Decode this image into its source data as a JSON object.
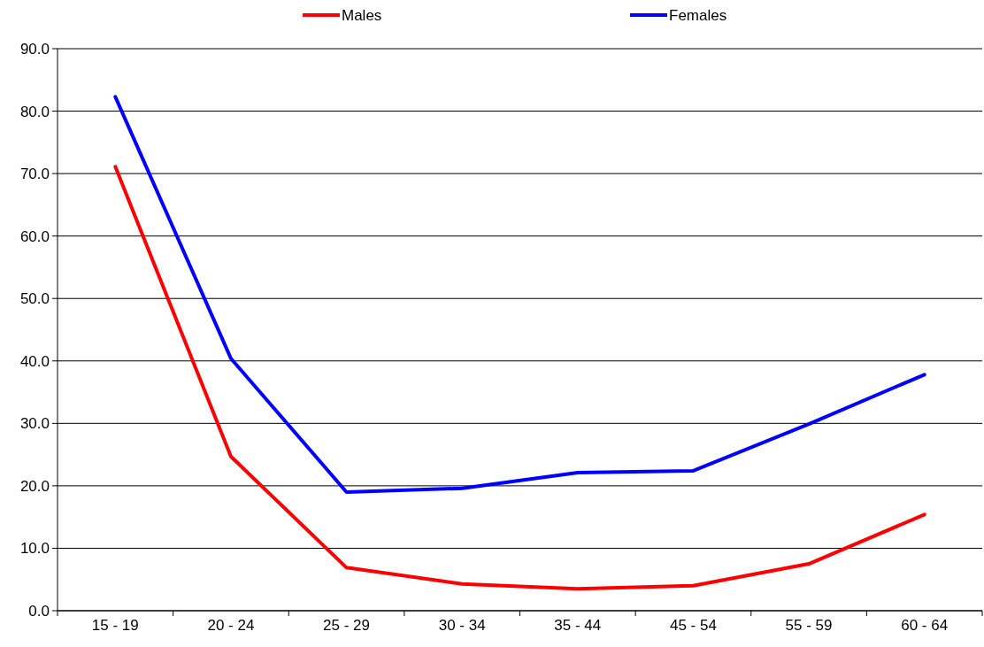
{
  "chart_data": {
    "type": "line",
    "categories": [
      "15 - 19",
      "20 - 24",
      "25 - 29",
      "30 - 34",
      "35 - 44",
      "45 - 54",
      "55 - 59",
      "60 - 64"
    ],
    "series": [
      {
        "name": "Males",
        "color": "#ff0000",
        "values": [
          71.1,
          24.7,
          6.9,
          4.3,
          3.5,
          4.0,
          7.5,
          15.4
        ]
      },
      {
        "name": "Females",
        "color": "#0000ff",
        "values": [
          82.3,
          40.4,
          19.0,
          19.6,
          22.1,
          22.4,
          29.9,
          37.8
        ]
      }
    ],
    "ylim": [
      0,
      90
    ],
    "yticks": [
      {
        "value": 0,
        "label": "0.0"
      },
      {
        "value": 10,
        "label": "10.0"
      },
      {
        "value": 20,
        "label": "20.0"
      },
      {
        "value": 30,
        "label": "30.0"
      },
      {
        "value": 40,
        "label": "40.0"
      },
      {
        "value": 50,
        "label": "50.0"
      },
      {
        "value": 60,
        "label": "60.0"
      },
      {
        "value": 70,
        "label": "70.0"
      },
      {
        "value": 80,
        "label": "80.0"
      },
      {
        "value": 90,
        "label": "90.0"
      }
    ],
    "grid": "y",
    "legend": "top",
    "marker": "none",
    "line_style": "solid"
  }
}
